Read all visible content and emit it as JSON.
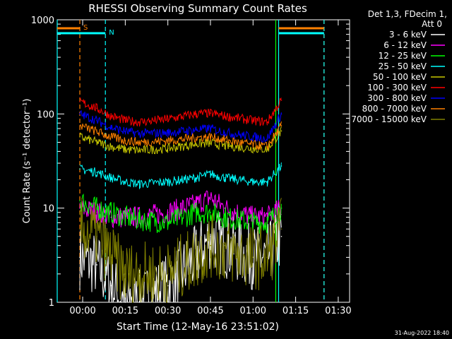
{
  "chart_data": {
    "type": "line",
    "title": "RHESSI Observing Summary Count Rates",
    "xlabel": "Start Time (12-May-16 23:51:02)",
    "ylabel": "Count Rate (s⁻¹ detector⁻¹)",
    "yscale": "log",
    "ylim": [
      1,
      1000
    ],
    "xlim": [
      "23:51:02",
      "01:34:00"
    ],
    "x_ticks": [
      "00:00",
      "00:15",
      "00:30",
      "00:45",
      "01:00",
      "01:15",
      "01:30"
    ],
    "y_ticks": [
      "1",
      "10",
      "100",
      "1000"
    ],
    "grid": false,
    "background": "#000000",
    "axis_color": "#ffffff",
    "legend_header": [
      "Det 1,3, FDecim 1,",
      "Att 0"
    ],
    "legend_position": "right",
    "series": [
      {
        "name": "3 - 6 keV",
        "color": "#ffffff",
        "x": [
          "23:59",
          "00:05",
          "00:10",
          "00:15",
          "00:20",
          "00:30",
          "00:40",
          "00:45",
          "00:50",
          "01:00",
          "01:05",
          "01:10"
        ],
        "y": [
          3,
          2.5,
          1.5,
          1,
          1,
          1.5,
          3,
          5,
          4,
          3,
          3,
          5
        ]
      },
      {
        "name": "6 - 12 keV",
        "color": "#ff00ff",
        "x": [
          "23:59",
          "00:05",
          "00:10",
          "00:15",
          "00:20",
          "00:30",
          "00:40",
          "00:45",
          "00:50",
          "01:00",
          "01:05",
          "01:10"
        ],
        "y": [
          10,
          9,
          8,
          8,
          8,
          9,
          11,
          13,
          10,
          8,
          8,
          10
        ]
      },
      {
        "name": "12 - 25 keV",
        "color": "#00ff00",
        "x": [
          "23:59",
          "00:05",
          "00:10",
          "00:15",
          "00:20",
          "00:30",
          "00:40",
          "00:45",
          "00:50",
          "01:00",
          "01:05",
          "01:10"
        ],
        "y": [
          12,
          10,
          9,
          8,
          7.5,
          7,
          9,
          9,
          8,
          7,
          7,
          10
        ]
      },
      {
        "name": "25 - 50 keV",
        "color": "#00ffff",
        "x": [
          "23:59",
          "00:05",
          "00:10",
          "00:15",
          "00:20",
          "00:30",
          "00:40",
          "00:45",
          "00:50",
          "01:00",
          "01:05",
          "01:10"
        ],
        "y": [
          26,
          24,
          21,
          19,
          18,
          19,
          21,
          23,
          21,
          19,
          19,
          28
        ]
      },
      {
        "name": "50 - 100 keV",
        "color": "#c8c800",
        "x": [
          "23:59",
          "00:05",
          "00:10",
          "00:15",
          "00:20",
          "00:30",
          "00:40",
          "00:45",
          "00:50",
          "01:00",
          "01:05",
          "01:10"
        ],
        "y": [
          57,
          50,
          45,
          42,
          41,
          43,
          48,
          49,
          46,
          43,
          42,
          66
        ]
      },
      {
        "name": "100 - 300 keV",
        "color": "#ff0000",
        "x": [
          "23:59",
          "00:05",
          "00:10",
          "00:15",
          "00:20",
          "00:30",
          "00:40",
          "00:45",
          "00:50",
          "01:00",
          "01:05",
          "01:10"
        ],
        "y": [
          135,
          115,
          95,
          85,
          82,
          88,
          100,
          102,
          95,
          85,
          82,
          140
        ]
      },
      {
        "name": "300 - 800 keV",
        "color": "#0000ff",
        "x": [
          "23:59",
          "00:05",
          "00:10",
          "00:15",
          "00:20",
          "00:30",
          "00:40",
          "00:45",
          "00:50",
          "01:00",
          "01:05",
          "01:10"
        ],
        "y": [
          100,
          85,
          72,
          65,
          62,
          63,
          68,
          70,
          64,
          57,
          55,
          100
        ]
      },
      {
        "name": "800 - 7000 keV",
        "color": "#ff8000",
        "x": [
          "23:59",
          "00:05",
          "00:10",
          "00:15",
          "00:20",
          "00:30",
          "00:40",
          "00:45",
          "00:50",
          "01:00",
          "01:05",
          "01:10"
        ],
        "y": [
          75,
          65,
          57,
          52,
          50,
          52,
          56,
          57,
          53,
          47,
          45,
          75
        ]
      },
      {
        "name": "7000 - 15000 keV",
        "color": "#808000",
        "x": [
          "23:59",
          "00:05",
          "00:10",
          "00:15",
          "00:20",
          "00:30",
          "00:40",
          "00:45",
          "00:50",
          "01:00",
          "01:05",
          "01:10"
        ],
        "y": [
          6,
          5,
          3,
          2,
          2,
          2,
          3,
          4,
          3.5,
          3,
          3,
          6
        ]
      }
    ],
    "annotations": [
      {
        "text": "S",
        "color": "#ff8000",
        "x": "23:59"
      },
      {
        "text": "N",
        "color": "#00ffff",
        "x": "00:08"
      }
    ],
    "orbit_flags": [
      {
        "label": "S",
        "color": "#ff8000",
        "bars": [
          [
            "23:51:02",
            "23:59"
          ],
          [
            "01:09",
            "01:25"
          ]
        ]
      },
      {
        "label": "N",
        "color": "#00ffff",
        "bars": [
          [
            "23:51:02",
            "00:08"
          ],
          [
            "01:09",
            "01:25"
          ]
        ]
      }
    ],
    "vertical_markers": [
      {
        "x": "23:59",
        "color": "#ff8000",
        "style": "dashed"
      },
      {
        "x": "00:08",
        "color": "#00ffff",
        "style": "dashed"
      },
      {
        "x": "01:08",
        "color": "#00ff00",
        "style": "solid"
      },
      {
        "x": "01:09",
        "color": "#00ffff",
        "style": "solid"
      },
      {
        "x": "01:25",
        "color": "#ff8000",
        "style": "dashed"
      },
      {
        "x": "01:25",
        "color": "#00ffff",
        "style": "dashed"
      },
      {
        "x": "23:51:02",
        "color": "#00ffff",
        "style": "solid"
      }
    ]
  },
  "footer": {
    "date": "31-Aug-2022 18:40"
  }
}
